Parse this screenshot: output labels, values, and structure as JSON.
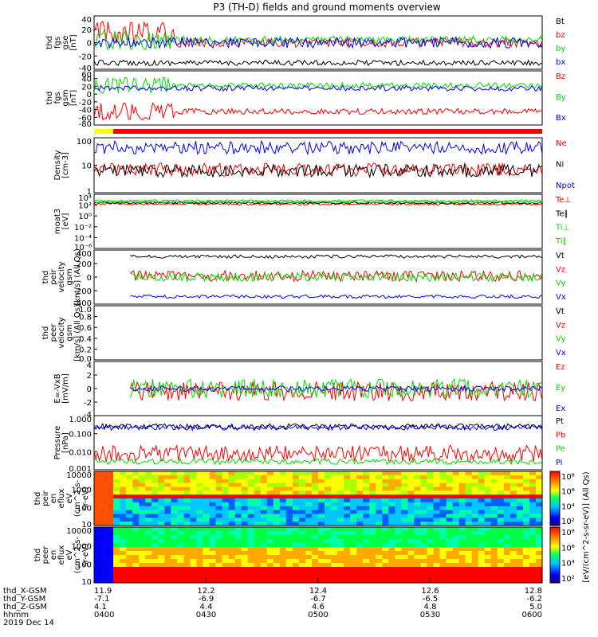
{
  "title": "P3 (TH-D) fields and ground moments overview",
  "colors": {
    "black": "#000000",
    "red": "#ff0000",
    "green": "#00dd00",
    "blue": "#0000ff",
    "yellow": "#ffff00"
  },
  "x_axis": {
    "rows": [
      {
        "label": "thd_X-GSM",
        "ticks": [
          "11.9",
          "12.2",
          "12.4",
          "12.6",
          "12.8"
        ]
      },
      {
        "label": "thd_Y-GSM",
        "ticks": [
          "-7.1",
          "-6.9",
          "-6.7",
          "-6.5",
          "-6.2"
        ]
      },
      {
        "label": "thd_Z-GSM",
        "ticks": [
          "4.1",
          "4.4",
          "4.6",
          "4.8",
          "5.0"
        ]
      },
      {
        "label": "hhmm",
        "ticks": [
          "0400",
          "0430",
          "0500",
          "0530",
          "0600"
        ]
      }
    ],
    "date": "2019 Dec 14"
  },
  "colorbars": [
    {
      "label": "[eV/(cm^2-s-sr-eV)] (All Qs)",
      "ticks": [
        "10⁸",
        "10⁶",
        "10⁴",
        "10²"
      ]
    },
    {
      "label": "[eV/(cm^2-s-sr-eV)] (All Qs)",
      "ticks": [
        "10⁸",
        "10⁶",
        "10⁴",
        "10²"
      ]
    }
  ],
  "chart_data": [
    {
      "type": "line",
      "ylabel_lines": [
        "thd",
        "fgs",
        "gse",
        "[nT]"
      ],
      "yticks": [
        "40",
        "20",
        "0",
        "-20",
        "-40"
      ],
      "ylim": [
        -40,
        40
      ],
      "series": [
        {
          "name": "Bt",
          "color": "#000000"
        },
        {
          "name": "bz",
          "color": "#ff0000"
        },
        {
          "name": "by",
          "color": "#00dd00"
        },
        {
          "name": "bx",
          "color": "#0000ff"
        }
      ]
    },
    {
      "type": "line",
      "ylabel_lines": [
        "thd",
        "fgs",
        "gsm",
        "[nT]"
      ],
      "yticks": [
        "60",
        "40",
        "20",
        "0",
        "-20",
        "-40",
        "-60",
        "-80"
      ],
      "ylim": [
        -80,
        60
      ],
      "series": [
        {
          "name": "Bz",
          "color": "#ff0000"
        },
        {
          "name": "By",
          "color": "#00dd00"
        },
        {
          "name": "Bx",
          "color": "#0000ff"
        }
      ]
    },
    {
      "type": "line",
      "ylabel_lines": [
        "Density",
        "[cm-3]"
      ],
      "yticks": [
        "100",
        "10",
        "1"
      ],
      "ylim": [
        1,
        300
      ],
      "log": true,
      "series": [
        {
          "name": "Ne",
          "color": "#ff0000"
        },
        {
          "name": "Ni",
          "color": "#000000"
        },
        {
          "name": "Npot",
          "color": "#0000ff"
        }
      ]
    },
    {
      "type": "line",
      "ylabel_lines": [
        "moat3",
        "[eV]"
      ],
      "yticks": [
        "10⁴",
        "10²",
        "10⁰",
        "10⁻²",
        "10⁻⁴",
        "10⁻⁶"
      ],
      "log": true,
      "series": [
        {
          "name": "Te⊥",
          "color": "#ff0000"
        },
        {
          "name": "Te∥",
          "color": "#000000"
        },
        {
          "name": "Ti⊥",
          "color": "#00dd00"
        },
        {
          "name": "Ti∥",
          "color": "#00dd00"
        }
      ]
    },
    {
      "type": "line",
      "ylabel_lines": [
        "thd",
        "peir",
        "velocity",
        "gsm",
        "[km/s] (All Qs)"
      ],
      "yticks": [
        "400",
        "200",
        "0",
        "-200",
        "-400"
      ],
      "ylim": [
        -400,
        400
      ],
      "series": [
        {
          "name": "Vt",
          "color": "#000000"
        },
        {
          "name": "Vz",
          "color": "#ff0000"
        },
        {
          "name": "Vy",
          "color": "#00dd00"
        },
        {
          "name": "Vx",
          "color": "#0000ff"
        }
      ]
    },
    {
      "type": "line",
      "ylabel_lines": [
        "thd",
        "peer",
        "velocity",
        "gsm",
        "[km/s] (All Qs)"
      ],
      "yticks": [
        "1.0",
        "0.8",
        "0.6",
        "0.4",
        "0.2",
        "0.0"
      ],
      "ylim": [
        0,
        1
      ],
      "series": [
        {
          "name": "Vt",
          "color": "#000000"
        },
        {
          "name": "Vz",
          "color": "#ff0000"
        },
        {
          "name": "Vy",
          "color": "#00dd00"
        },
        {
          "name": "Vx",
          "color": "#0000ff"
        }
      ]
    },
    {
      "type": "line",
      "ylabel_lines": [
        "E=-VxB",
        "[mV/m]"
      ],
      "yticks": [
        "4",
        "2",
        "0",
        "-2",
        "-4"
      ],
      "ylim": [
        -4,
        4
      ],
      "series": [
        {
          "name": "Ez",
          "color": "#ff0000"
        },
        {
          "name": "Ey",
          "color": "#00dd00"
        },
        {
          "name": "Ex",
          "color": "#0000ff"
        }
      ]
    },
    {
      "type": "line",
      "ylabel_lines": [
        "Pressure",
        "[nPa]"
      ],
      "yticks": [
        "1.000",
        "0.100",
        "0.010",
        "0.001"
      ],
      "ylim": [
        0.001,
        1
      ],
      "log": true,
      "series": [
        {
          "name": "Pt",
          "color": "#000000"
        },
        {
          "name": "Pb",
          "color": "#ff0000"
        },
        {
          "name": "Pe",
          "color": "#00dd00"
        },
        {
          "name": "Pi",
          "color": "#0000ff"
        }
      ]
    },
    {
      "type": "heatmap",
      "ylabel_lines": [
        "thd",
        "peir",
        "en",
        "eflux",
        "eV",
        "(cm^2-s-",
        "sr-eV)"
      ],
      "yticks": [
        "10000",
        "1000",
        "100",
        "10"
      ]
    },
    {
      "type": "heatmap",
      "ylabel_lines": [
        "thd",
        "peer",
        "en",
        "eflux",
        "eV",
        "(cm^2-s-",
        "sr-eV)"
      ],
      "yticks": [
        "10000",
        "1000",
        "100",
        "10"
      ]
    }
  ]
}
